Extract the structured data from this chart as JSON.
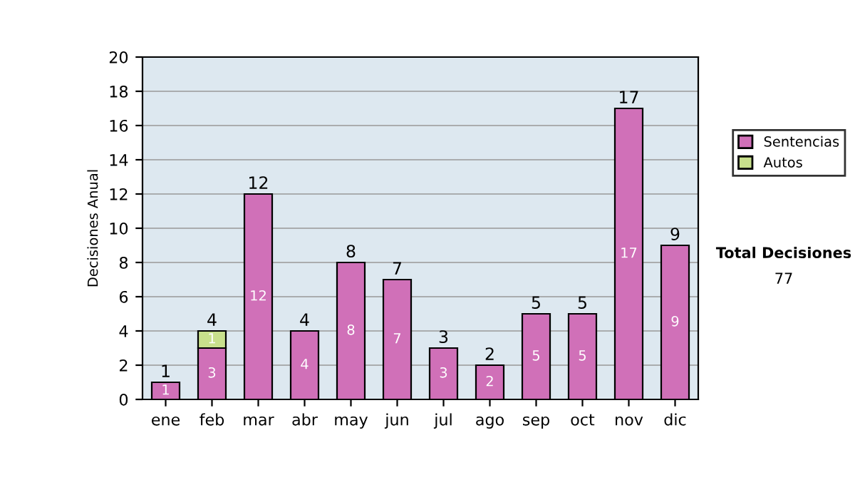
{
  "chart_data": {
    "type": "bar",
    "ylabel": "Decisiones Anual",
    "stacked": true,
    "categories": [
      "ene",
      "feb",
      "mar",
      "abr",
      "may",
      "jun",
      "jul",
      "ago",
      "sep",
      "oct",
      "nov",
      "dic"
    ],
    "series": [
      {
        "name": "Sentencias",
        "color": "#d070b8",
        "values": [
          1,
          3,
          12,
          4,
          8,
          7,
          3,
          2,
          5,
          5,
          17,
          9
        ],
        "value_labels": [
          "1",
          "3",
          "12",
          "4",
          "8",
          "7",
          "3",
          "2",
          "5",
          "5",
          "17",
          "9"
        ]
      },
      {
        "name": "Autos",
        "color": "#c8e08c",
        "values": [
          0,
          1,
          0,
          0,
          0,
          0,
          0,
          0,
          0,
          0,
          0,
          0
        ],
        "value_labels": [
          null,
          "1",
          null,
          null,
          null,
          null,
          null,
          null,
          null,
          null,
          null,
          null
        ]
      }
    ],
    "totals": [
      "1",
      "4",
      "12",
      "4",
      "8",
      "7",
      "3",
      "2",
      "5",
      "5",
      "17",
      "9"
    ],
    "ylim": [
      0,
      20
    ],
    "yticks": [
      0,
      2,
      4,
      6,
      8,
      10,
      12,
      14,
      16,
      18,
      20
    ],
    "grid": "y",
    "legend": "right",
    "annotations": [
      "Total Decisiones",
      "77"
    ]
  }
}
